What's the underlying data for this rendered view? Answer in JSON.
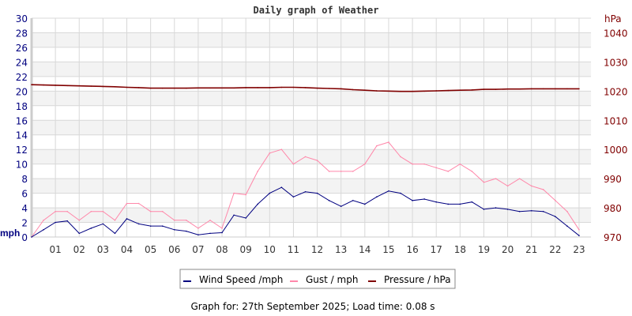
{
  "chart_data": {
    "type": "line",
    "title": "Daily graph of Weather",
    "ylabel": "mph",
    "y2label": "hPa",
    "xlim": [
      0,
      23.5
    ],
    "ylim": [
      0,
      30
    ],
    "y2lim": [
      970,
      1045
    ],
    "grid": true,
    "x_ticks": [
      "01",
      "02",
      "03",
      "04",
      "05",
      "06",
      "07",
      "08",
      "09",
      "10",
      "11",
      "12",
      "13",
      "14",
      "15",
      "16",
      "17",
      "18",
      "19",
      "20",
      "21",
      "22",
      "23"
    ],
    "y_ticks": [
      0,
      2,
      4,
      6,
      8,
      10,
      12,
      14,
      16,
      18,
      20,
      22,
      24,
      26,
      28,
      30
    ],
    "y2_ticks": [
      970,
      980,
      990,
      1000,
      1010,
      1020,
      1030,
      1040
    ],
    "legend_position": "bottom",
    "x": [
      0,
      0.5,
      1,
      1.5,
      2,
      2.5,
      3,
      3.5,
      4,
      4.5,
      5,
      5.5,
      6,
      6.5,
      7,
      7.5,
      8,
      8.5,
      9,
      9.5,
      10,
      10.5,
      11,
      11.5,
      12,
      12.5,
      13,
      13.5,
      14,
      14.5,
      15,
      15.5,
      16,
      16.5,
      17,
      17.5,
      18,
      18.5,
      19,
      19.5,
      20,
      20.5,
      21,
      21.5,
      22,
      22.5,
      23
    ],
    "series": [
      {
        "name": "Wind Speed /mph",
        "axis": "left",
        "color": "#000080",
        "values": [
          0,
          1.0,
          2.0,
          2.2,
          0.5,
          1.2,
          1.8,
          0.5,
          2.5,
          1.8,
          1.5,
          1.5,
          1.0,
          0.8,
          0.3,
          0.5,
          0.6,
          3.0,
          2.6,
          4.5,
          6.0,
          6.8,
          5.5,
          6.2,
          6.0,
          5.0,
          4.2,
          5.0,
          4.5,
          5.5,
          6.3,
          6.0,
          5.0,
          5.2,
          4.8,
          4.5,
          4.5,
          4.8,
          3.8,
          4.0,
          3.8,
          3.5,
          3.6,
          3.5,
          2.8,
          1.5,
          0.2
        ]
      },
      {
        "name": "Gust / mph",
        "axis": "left",
        "color": "#ff88aa",
        "values": [
          0,
          2.3,
          3.5,
          3.5,
          2.3,
          3.5,
          3.5,
          2.3,
          4.6,
          4.6,
          3.5,
          3.5,
          2.3,
          2.3,
          1.2,
          2.3,
          1.2,
          6.0,
          5.8,
          9.0,
          11.5,
          12.0,
          10.0,
          11.0,
          10.5,
          9.0,
          9.0,
          9.0,
          10.0,
          12.5,
          13.0,
          11.0,
          10.0,
          10.0,
          9.5,
          9.0,
          10.0,
          9.0,
          7.5,
          8.0,
          7.0,
          8.0,
          7.0,
          6.5,
          5.0,
          3.5,
          1.0
        ]
      },
      {
        "name": "Pressure / hPa",
        "axis": "right",
        "color": "#800000",
        "values": [
          1022.2,
          1022.1,
          1022.0,
          1021.9,
          1021.8,
          1021.7,
          1021.6,
          1021.5,
          1021.3,
          1021.2,
          1021.0,
          1021.0,
          1021.0,
          1021.0,
          1021.1,
          1021.1,
          1021.1,
          1021.1,
          1021.2,
          1021.2,
          1021.2,
          1021.3,
          1021.3,
          1021.2,
          1021.0,
          1020.9,
          1020.8,
          1020.5,
          1020.3,
          1020.1,
          1020.0,
          1019.9,
          1019.9,
          1020.0,
          1020.1,
          1020.2,
          1020.3,
          1020.4,
          1020.6,
          1020.6,
          1020.7,
          1020.7,
          1020.8,
          1020.8,
          1020.8,
          1020.8,
          1020.8
        ]
      }
    ]
  },
  "footer": "Graph for: 27th September 2025; Load time: 0.08 s"
}
